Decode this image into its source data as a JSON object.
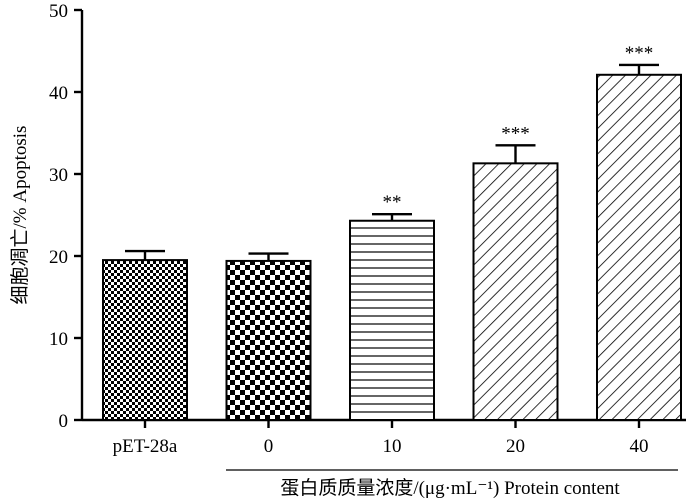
{
  "chart_data": {
    "type": "bar",
    "categories": [
      "pET-28a",
      "0",
      "10",
      "20",
      "40"
    ],
    "values": [
      19.5,
      19.4,
      24.3,
      31.3,
      42.1
    ],
    "errors": [
      1.1,
      0.9,
      0.8,
      2.2,
      1.2
    ],
    "significance": [
      "",
      "",
      "**",
      "***",
      "***"
    ],
    "fill_patterns": [
      "checker-small",
      "checker-large",
      "horizontal-lines",
      "diagonal-lines",
      "diagonal-lines"
    ],
    "ylabel": "细胞凋亡/%  Apoptosis",
    "xlabel": "蛋白质质量浓度/(μg·mL⁻¹)  Protein content",
    "ylim": [
      0,
      50
    ],
    "yticks": [
      0,
      10,
      20,
      30,
      40,
      50
    ],
    "grid": false,
    "colors": {
      "ink": "#000000",
      "background": "#ffffff"
    }
  }
}
